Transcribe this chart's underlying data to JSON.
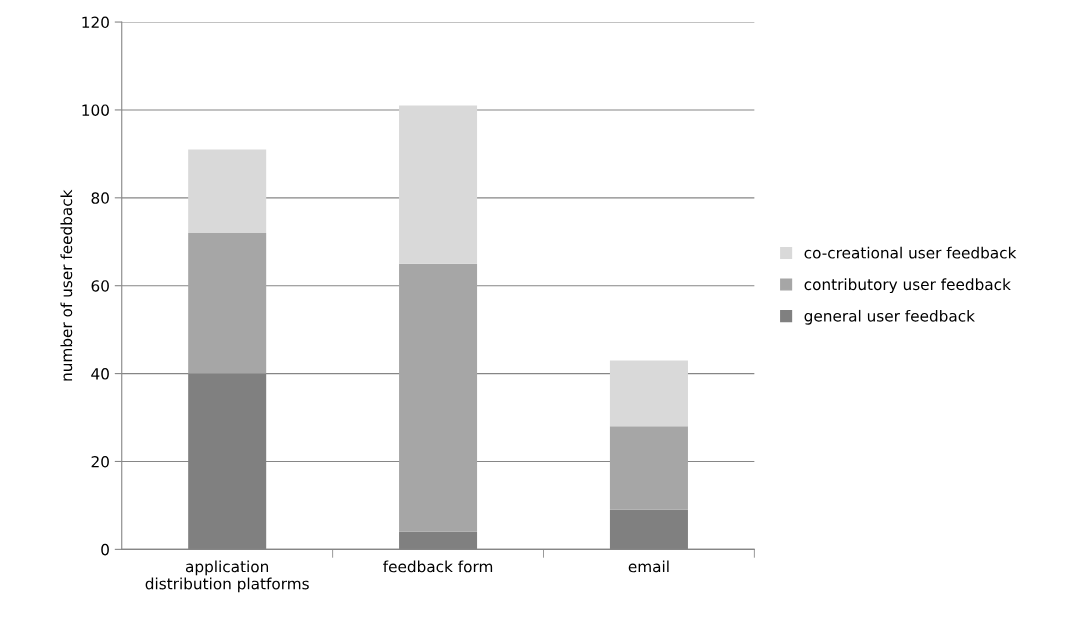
{
  "chart_data": {
    "type": "bar",
    "stacked": true,
    "ylabel": "number of user feedback",
    "categories": [
      "application\ndistribution platforms",
      "feedback form",
      "email"
    ],
    "series": [
      {
        "name": "general user feedback",
        "color": "#808080",
        "values": [
          40,
          4,
          9
        ]
      },
      {
        "name": "contributory user feedback",
        "color": "#a6a6a6",
        "values": [
          32,
          61,
          19
        ]
      },
      {
        "name": "co-creational user feedback",
        "color": "#d9d9d9",
        "values": [
          19,
          36,
          15
        ]
      }
    ],
    "ylim": [
      0,
      120
    ],
    "yticks": [
      0,
      20,
      40,
      60,
      80,
      100,
      120
    ],
    "grid": "y",
    "legend": "right"
  }
}
